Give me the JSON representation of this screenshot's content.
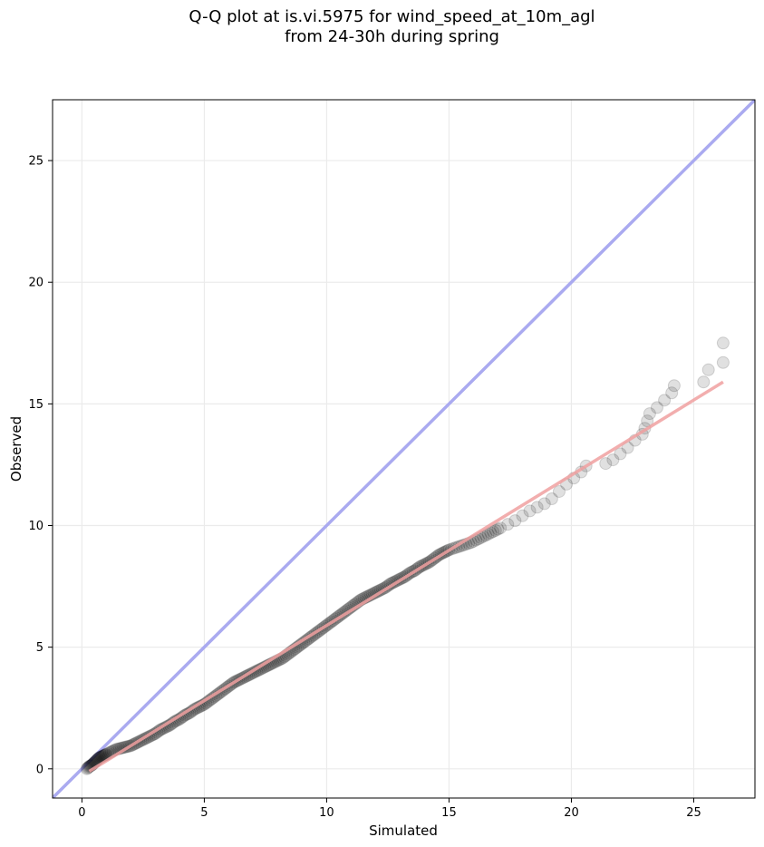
{
  "chart_data": {
    "type": "scatter",
    "title": "Q-Q plot at is.vi.5975 for wind_speed_at_10m_agl",
    "subtitle": "from 24-30h during spring",
    "xlabel": "Simulated",
    "ylabel": "Observed",
    "xlim": [
      -1.2,
      27.5
    ],
    "ylim": [
      -1.2,
      27.5
    ],
    "xticks": [
      0,
      5,
      10,
      15,
      20,
      25
    ],
    "yticks": [
      0,
      5,
      10,
      15,
      20,
      25
    ],
    "grid": true,
    "reference_line": {
      "kind": "y=x",
      "color": "#aaaaf0"
    },
    "fit_line": {
      "from": [
        0.3,
        -0.1
      ],
      "to": [
        26.2,
        15.9
      ],
      "color": "#f0a0a0"
    },
    "points": [
      [
        0.2,
        0.0
      ],
      [
        0.3,
        0.1
      ],
      [
        0.4,
        0.15
      ],
      [
        0.5,
        0.25
      ],
      [
        0.6,
        0.35
      ],
      [
        0.7,
        0.45
      ],
      [
        0.8,
        0.5
      ],
      [
        0.9,
        0.55
      ],
      [
        1.0,
        0.6
      ],
      [
        1.2,
        0.7
      ],
      [
        1.4,
        0.8
      ],
      [
        1.6,
        0.85
      ],
      [
        1.8,
        0.9
      ],
      [
        2.0,
        0.95
      ],
      [
        2.2,
        1.05
      ],
      [
        2.4,
        1.15
      ],
      [
        2.6,
        1.25
      ],
      [
        2.8,
        1.35
      ],
      [
        3.0,
        1.45
      ],
      [
        3.2,
        1.6
      ],
      [
        3.4,
        1.7
      ],
      [
        3.6,
        1.8
      ],
      [
        3.8,
        1.95
      ],
      [
        4.0,
        2.05
      ],
      [
        4.2,
        2.2
      ],
      [
        4.4,
        2.3
      ],
      [
        4.6,
        2.45
      ],
      [
        4.8,
        2.55
      ],
      [
        5.0,
        2.65
      ],
      [
        5.2,
        2.8
      ],
      [
        5.4,
        2.95
      ],
      [
        5.6,
        3.1
      ],
      [
        5.8,
        3.25
      ],
      [
        6.0,
        3.4
      ],
      [
        6.2,
        3.55
      ],
      [
        6.4,
        3.65
      ],
      [
        6.6,
        3.75
      ],
      [
        6.8,
        3.85
      ],
      [
        7.0,
        3.95
      ],
      [
        7.2,
        4.05
      ],
      [
        7.4,
        4.15
      ],
      [
        7.6,
        4.25
      ],
      [
        7.8,
        4.35
      ],
      [
        8.0,
        4.45
      ],
      [
        8.2,
        4.55
      ],
      [
        8.4,
        4.7
      ],
      [
        8.6,
        4.85
      ],
      [
        8.8,
        5.0
      ],
      [
        9.0,
        5.15
      ],
      [
        9.2,
        5.3
      ],
      [
        9.4,
        5.45
      ],
      [
        9.6,
        5.6
      ],
      [
        9.8,
        5.75
      ],
      [
        10.0,
        5.9
      ],
      [
        10.2,
        6.05
      ],
      [
        10.4,
        6.2
      ],
      [
        10.6,
        6.35
      ],
      [
        10.8,
        6.5
      ],
      [
        11.0,
        6.65
      ],
      [
        11.2,
        6.8
      ],
      [
        11.4,
        6.95
      ],
      [
        11.6,
        7.05
      ],
      [
        11.8,
        7.15
      ],
      [
        12.0,
        7.25
      ],
      [
        12.2,
        7.35
      ],
      [
        12.4,
        7.45
      ],
      [
        12.6,
        7.6
      ],
      [
        12.8,
        7.7
      ],
      [
        13.0,
        7.8
      ],
      [
        13.2,
        7.9
      ],
      [
        13.4,
        8.05
      ],
      [
        13.6,
        8.15
      ],
      [
        13.8,
        8.3
      ],
      [
        14.0,
        8.4
      ],
      [
        14.2,
        8.5
      ],
      [
        14.4,
        8.65
      ],
      [
        14.6,
        8.8
      ],
      [
        14.8,
        8.9
      ],
      [
        15.0,
        9.0
      ],
      [
        15.3,
        9.1
      ],
      [
        15.6,
        9.2
      ],
      [
        15.9,
        9.3
      ],
      [
        16.2,
        9.45
      ],
      [
        16.5,
        9.6
      ],
      [
        16.8,
        9.75
      ],
      [
        17.1,
        9.9
      ],
      [
        17.4,
        10.05
      ],
      [
        17.7,
        10.2
      ],
      [
        18.0,
        10.4
      ],
      [
        18.3,
        10.6
      ],
      [
        18.6,
        10.75
      ],
      [
        18.9,
        10.9
      ],
      [
        19.2,
        11.1
      ],
      [
        19.5,
        11.4
      ],
      [
        19.8,
        11.7
      ],
      [
        20.1,
        11.95
      ],
      [
        20.4,
        12.2
      ],
      [
        20.6,
        12.45
      ],
      [
        21.4,
        12.55
      ],
      [
        21.7,
        12.7
      ],
      [
        22.0,
        12.95
      ],
      [
        22.3,
        13.2
      ],
      [
        22.6,
        13.5
      ],
      [
        22.9,
        13.75
      ],
      [
        23.0,
        14.0
      ],
      [
        23.1,
        14.3
      ],
      [
        23.2,
        14.6
      ],
      [
        23.5,
        14.85
      ],
      [
        23.8,
        15.15
      ],
      [
        24.1,
        15.45
      ],
      [
        24.2,
        15.75
      ],
      [
        25.4,
        15.9
      ],
      [
        25.6,
        16.4
      ],
      [
        26.2,
        16.7
      ],
      [
        26.2,
        17.5
      ]
    ]
  }
}
